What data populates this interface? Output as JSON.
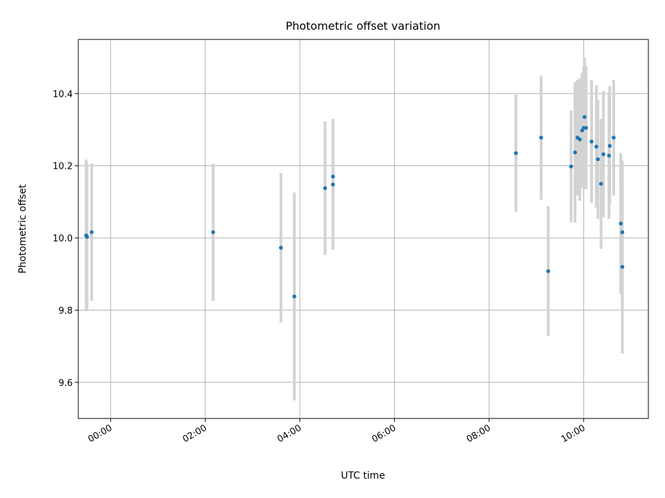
{
  "chart_data": {
    "type": "scatter",
    "title": "Photometric offset variation",
    "xlabel": "UTC time",
    "ylabel": "Photometric offset",
    "grid": true,
    "x_unit": "UTC time (HH:MM)",
    "xlim": [
      "23:19",
      "11:22"
    ],
    "ylim": [
      9.5,
      10.55
    ],
    "xticks": [
      "00:00",
      "02:00",
      "04:00",
      "06:00",
      "08:00",
      "10:00"
    ],
    "yticks": [
      9.6,
      9.8,
      10.0,
      10.2,
      10.4
    ],
    "marker_color": "#1f77b4",
    "errorbar_color": "#d3d3d3",
    "points": [
      {
        "x": "23:29",
        "y": 10.007,
        "err": 0.21
      },
      {
        "x": "23:30",
        "y": 10.003,
        "err": 0.205
      },
      {
        "x": "23:36",
        "y": 10.016,
        "err": 0.19
      },
      {
        "x": "02:10",
        "y": 10.016,
        "err": 0.19
      },
      {
        "x": "03:36",
        "y": 9.973,
        "err": 0.207
      },
      {
        "x": "03:53",
        "y": 9.838,
        "err": 0.288
      },
      {
        "x": "04:32",
        "y": 10.138,
        "err": 0.185
      },
      {
        "x": "04:42",
        "y": 10.17,
        "err": 0.16
      },
      {
        "x": "04:42",
        "y": 10.148,
        "err": 0.18
      },
      {
        "x": "08:34",
        "y": 10.235,
        "err": 0.162
      },
      {
        "x": "09:06",
        "y": 10.278,
        "err": 0.172
      },
      {
        "x": "09:15",
        "y": 9.908,
        "err": 0.18
      },
      {
        "x": "09:44",
        "y": 10.198,
        "err": 0.155
      },
      {
        "x": "09:49",
        "y": 10.237,
        "err": 0.195
      },
      {
        "x": "09:52",
        "y": 10.278,
        "err": 0.16
      },
      {
        "x": "09:55",
        "y": 10.273,
        "err": 0.17
      },
      {
        "x": "09:58",
        "y": 10.298,
        "err": 0.16
      },
      {
        "x": "10:00",
        "y": 10.305,
        "err": 0.17
      },
      {
        "x": "10:01",
        "y": 10.335,
        "err": 0.165
      },
      {
        "x": "10:03",
        "y": 10.305,
        "err": 0.17
      },
      {
        "x": "10:10",
        "y": 10.267,
        "err": 0.17
      },
      {
        "x": "10:16",
        "y": 10.253,
        "err": 0.17
      },
      {
        "x": "10:18",
        "y": 10.218,
        "err": 0.165
      },
      {
        "x": "10:22",
        "y": 10.15,
        "err": 0.18
      },
      {
        "x": "10:25",
        "y": 10.232,
        "err": 0.175
      },
      {
        "x": "10:32",
        "y": 10.228,
        "err": 0.175
      },
      {
        "x": "10:33",
        "y": 10.255,
        "err": 0.165
      },
      {
        "x": "10:38",
        "y": 10.278,
        "err": 0.16
      },
      {
        "x": "10:47",
        "y": 10.04,
        "err": 0.195
      },
      {
        "x": "10:49",
        "y": 10.016,
        "err": 0.198
      },
      {
        "x": "10:49",
        "y": 9.92,
        "err": 0.24
      }
    ]
  }
}
